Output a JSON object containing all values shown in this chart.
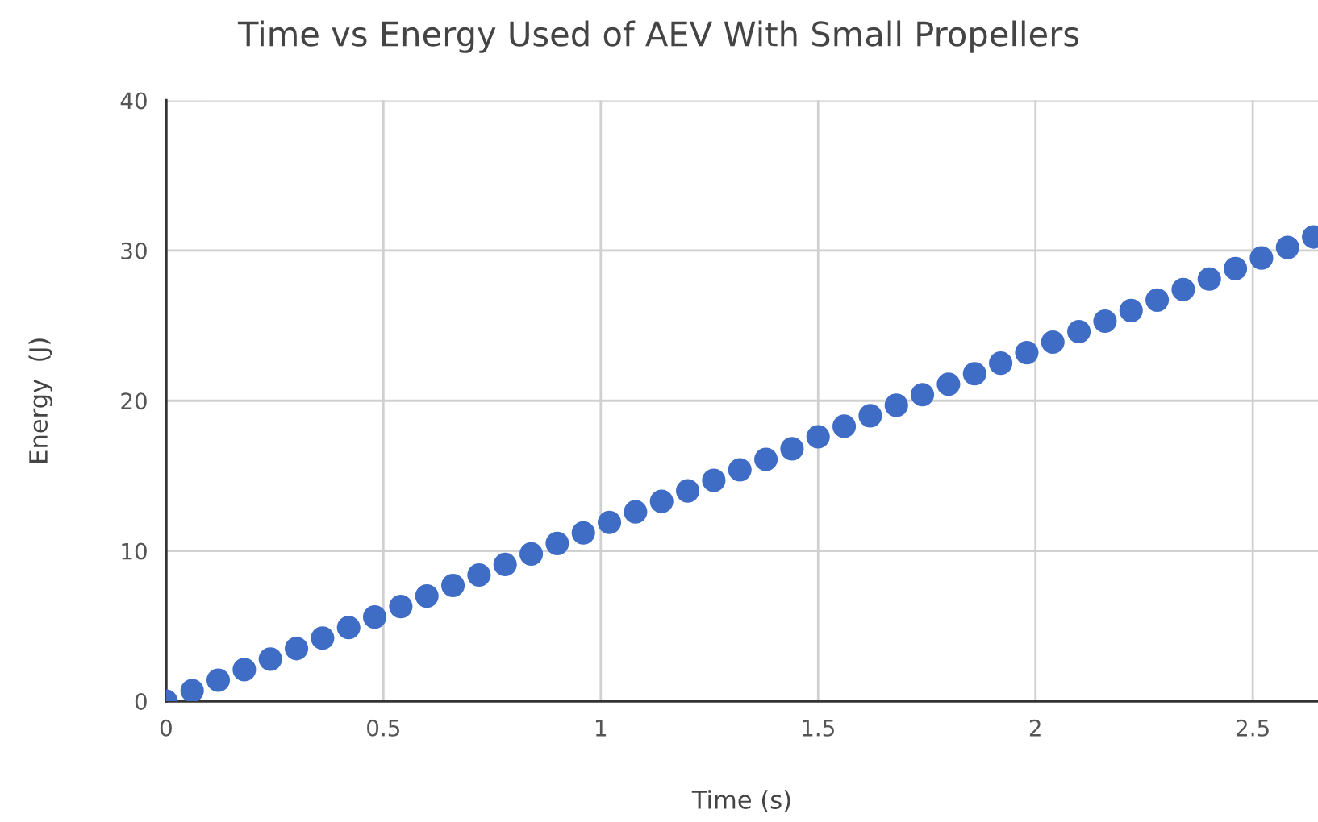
{
  "chart_data": {
    "type": "scatter",
    "title": "Time vs Energy Used of AEV With Small Propellers",
    "xlabel": "Time (s)",
    "ylabel": "Energy  (J)",
    "x": [
      0,
      0.06,
      0.12,
      0.18,
      0.24,
      0.3,
      0.36,
      0.42,
      0.48,
      0.54,
      0.6,
      0.66,
      0.72,
      0.78,
      0.84,
      0.9,
      0.96,
      1.02,
      1.08,
      1.14,
      1.2,
      1.26,
      1.32,
      1.38,
      1.44,
      1.5,
      1.56,
      1.62,
      1.68,
      1.74,
      1.8,
      1.86,
      1.92,
      1.98,
      2.04,
      2.1,
      2.16,
      2.22,
      2.28,
      2.34,
      2.4,
      2.46,
      2.52,
      2.58,
      2.64
    ],
    "series": [
      {
        "color": "#3f6dc6",
        "values": [
          0,
          0.7,
          1.4,
          2.1,
          2.8,
          3.5,
          4.2,
          4.9,
          5.6,
          6.3,
          7.0,
          7.7,
          8.4,
          9.1,
          9.8,
          10.5,
          11.2,
          11.9,
          12.6,
          13.3,
          14.0,
          14.7,
          15.4,
          16.1,
          16.8,
          17.6,
          18.3,
          19.0,
          19.7,
          20.4,
          21.1,
          21.8,
          22.5,
          23.2,
          23.9,
          24.6,
          25.3,
          26.0,
          26.7,
          27.4,
          28.1,
          28.8,
          29.5,
          30.2,
          30.9
        ]
      }
    ],
    "xlim": [
      0,
      2.65
    ],
    "ylim": [
      0,
      40
    ],
    "xticks": [
      0,
      0.5,
      1,
      1.5,
      2,
      2.5
    ],
    "yticks": [
      0,
      10,
      20,
      30,
      40
    ],
    "grid": true,
    "marker": "circle"
  }
}
